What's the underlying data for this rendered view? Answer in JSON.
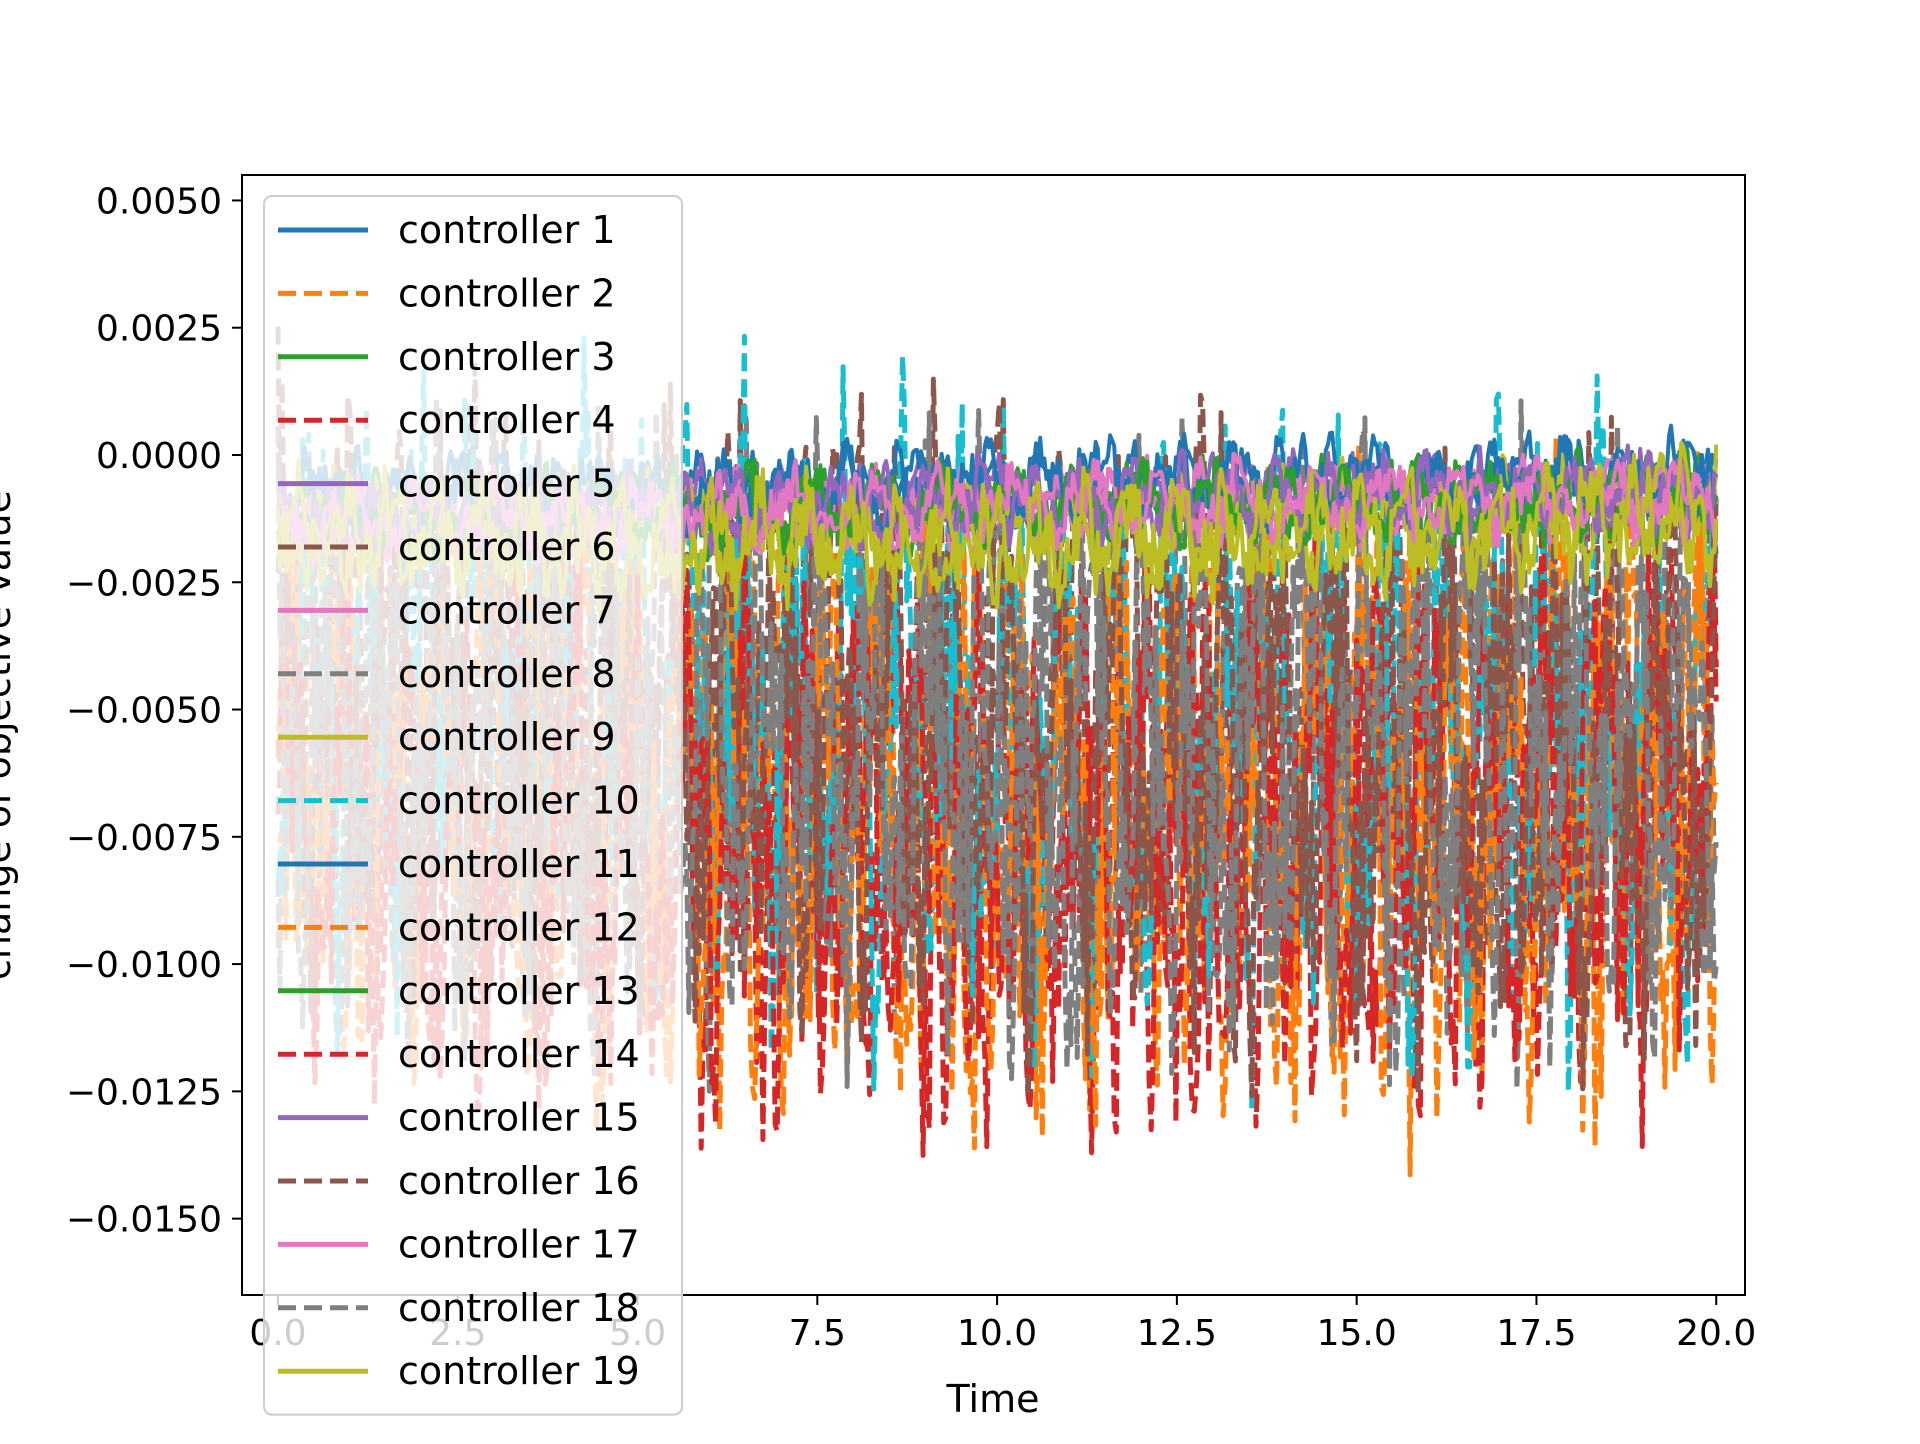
{
  "chart_data": {
    "type": "line",
    "title": "",
    "xlabel": "Time",
    "ylabel": "change of objective value",
    "xlim": [
      -0.5,
      20.4
    ],
    "ylim": [
      -0.0165,
      0.0055
    ],
    "xticks": [
      0.0,
      2.5,
      5.0,
      7.5,
      10.0,
      12.5,
      15.0,
      17.5,
      20.0
    ],
    "xtick_labels": [
      "0.0",
      "2.5",
      "5.0",
      "7.5",
      "10.0",
      "12.5",
      "15.0",
      "17.5",
      "20.0"
    ],
    "yticks": [
      0.005,
      0.0025,
      0.0,
      -0.0025,
      -0.005,
      -0.0075,
      -0.01,
      -0.0125,
      -0.015
    ],
    "ytick_labels": [
      "0.0050",
      "0.0025",
      "0.0000",
      "−0.0025",
      "−0.0050",
      "−0.0075",
      "−0.0100",
      "−0.0125",
      "−0.0150"
    ],
    "x_range": [
      0.0,
      20.0
    ],
    "grid": false,
    "legend_position": "upper-left",
    "series": [
      {
        "name": "controller 1",
        "color": "#1f77b4",
        "dash": "solid",
        "center": [
          -0.0008,
          -0.0005,
          -0.0004
        ],
        "amplitude": 0.0008,
        "range": [
          -0.002,
          0.001
        ]
      },
      {
        "name": "controller 2",
        "color": "#ff7f0e",
        "dash": "dashed",
        "center": [
          -0.0065,
          -0.0075,
          -0.007
        ],
        "amplitude": 0.0055,
        "range": [
          -0.015,
          0.003
        ]
      },
      {
        "name": "controller 3",
        "color": "#2ca02c",
        "dash": "solid",
        "center": [
          -0.0012,
          -0.001,
          -0.0008
        ],
        "amplitude": 0.0008,
        "range": [
          -0.003,
          0.0005
        ]
      },
      {
        "name": "controller 4",
        "color": "#d62728",
        "dash": "dashed",
        "center": [
          -0.007,
          -0.008,
          -0.007
        ],
        "amplitude": 0.005,
        "range": [
          -0.015,
          0.002
        ]
      },
      {
        "name": "controller 5",
        "color": "#9467bd",
        "dash": "solid",
        "center": [
          -0.0012,
          -0.0009,
          -0.0007
        ],
        "amplitude": 0.0008,
        "range": [
          -0.003,
          0.0008
        ]
      },
      {
        "name": "controller 6",
        "color": "#8c564b",
        "dash": "dashed",
        "center": [
          -0.004,
          -0.005,
          -0.006
        ],
        "amplitude": 0.0055,
        "range": [
          -0.0145,
          0.0046
        ]
      },
      {
        "name": "controller 7",
        "color": "#e377c2",
        "dash": "solid",
        "center": [
          -0.0013,
          -0.001,
          -0.0008
        ],
        "amplitude": 0.0008,
        "range": [
          -0.003,
          0.0008
        ]
      },
      {
        "name": "controller 8",
        "color": "#7f7f7f",
        "dash": "dashed",
        "center": [
          -0.006,
          -0.006,
          -0.006
        ],
        "amplitude": 0.0055,
        "range": [
          -0.0145,
          0.003
        ]
      },
      {
        "name": "controller 9",
        "color": "#bcbd22",
        "dash": "solid",
        "center": [
          -0.0015,
          -0.0017,
          -0.0012
        ],
        "amplitude": 0.0012,
        "range": [
          -0.004,
          0.0005
        ]
      },
      {
        "name": "controller 10",
        "color": "#17becf",
        "dash": "dashed",
        "center": [
          -0.004,
          -0.0055,
          -0.0055
        ],
        "amplitude": 0.006,
        "range": [
          -0.0145,
          0.003
        ]
      },
      {
        "name": "controller 11",
        "color": "#1f77b4",
        "dash": "solid",
        "center": [
          -0.0009,
          -0.0006,
          -0.0005
        ],
        "amplitude": 0.0008,
        "range": [
          -0.002,
          0.001
        ]
      },
      {
        "name": "controller 12",
        "color": "#ff7f0e",
        "dash": "dashed",
        "center": [
          -0.006,
          -0.0065,
          -0.0065
        ],
        "amplitude": 0.0055,
        "range": [
          -0.0145,
          0.0025
        ]
      },
      {
        "name": "controller 13",
        "color": "#2ca02c",
        "dash": "solid",
        "center": [
          -0.0012,
          -0.001,
          -0.0008
        ],
        "amplitude": 0.0008,
        "range": [
          -0.003,
          0.0005
        ]
      },
      {
        "name": "controller 14",
        "color": "#d62728",
        "dash": "dashed",
        "center": [
          -0.007,
          -0.0075,
          -0.0065
        ],
        "amplitude": 0.005,
        "range": [
          -0.0145,
          0.0015
        ]
      },
      {
        "name": "controller 15",
        "color": "#9467bd",
        "dash": "solid",
        "center": [
          -0.0012,
          -0.0009,
          -0.0007
        ],
        "amplitude": 0.0008,
        "range": [
          -0.003,
          0.0008
        ]
      },
      {
        "name": "controller 16",
        "color": "#8c564b",
        "dash": "dashed",
        "center": [
          -0.005,
          -0.0055,
          -0.006
        ],
        "amplitude": 0.0055,
        "range": [
          -0.0145,
          0.003
        ]
      },
      {
        "name": "controller 17",
        "color": "#e377c2",
        "dash": "solid",
        "center": [
          -0.0013,
          -0.001,
          -0.0008
        ],
        "amplitude": 0.0008,
        "range": [
          -0.003,
          0.0008
        ]
      },
      {
        "name": "controller 18",
        "color": "#7f7f7f",
        "dash": "dashed",
        "center": [
          -0.0055,
          -0.006,
          -0.0055
        ],
        "amplitude": 0.0055,
        "range": [
          -0.0145,
          0.0025
        ]
      },
      {
        "name": "controller 19",
        "color": "#bcbd22",
        "dash": "solid",
        "center": [
          -0.0015,
          -0.0017,
          -0.0011
        ],
        "amplitude": 0.0012,
        "range": [
          -0.004,
          0.0005
        ]
      }
    ]
  }
}
